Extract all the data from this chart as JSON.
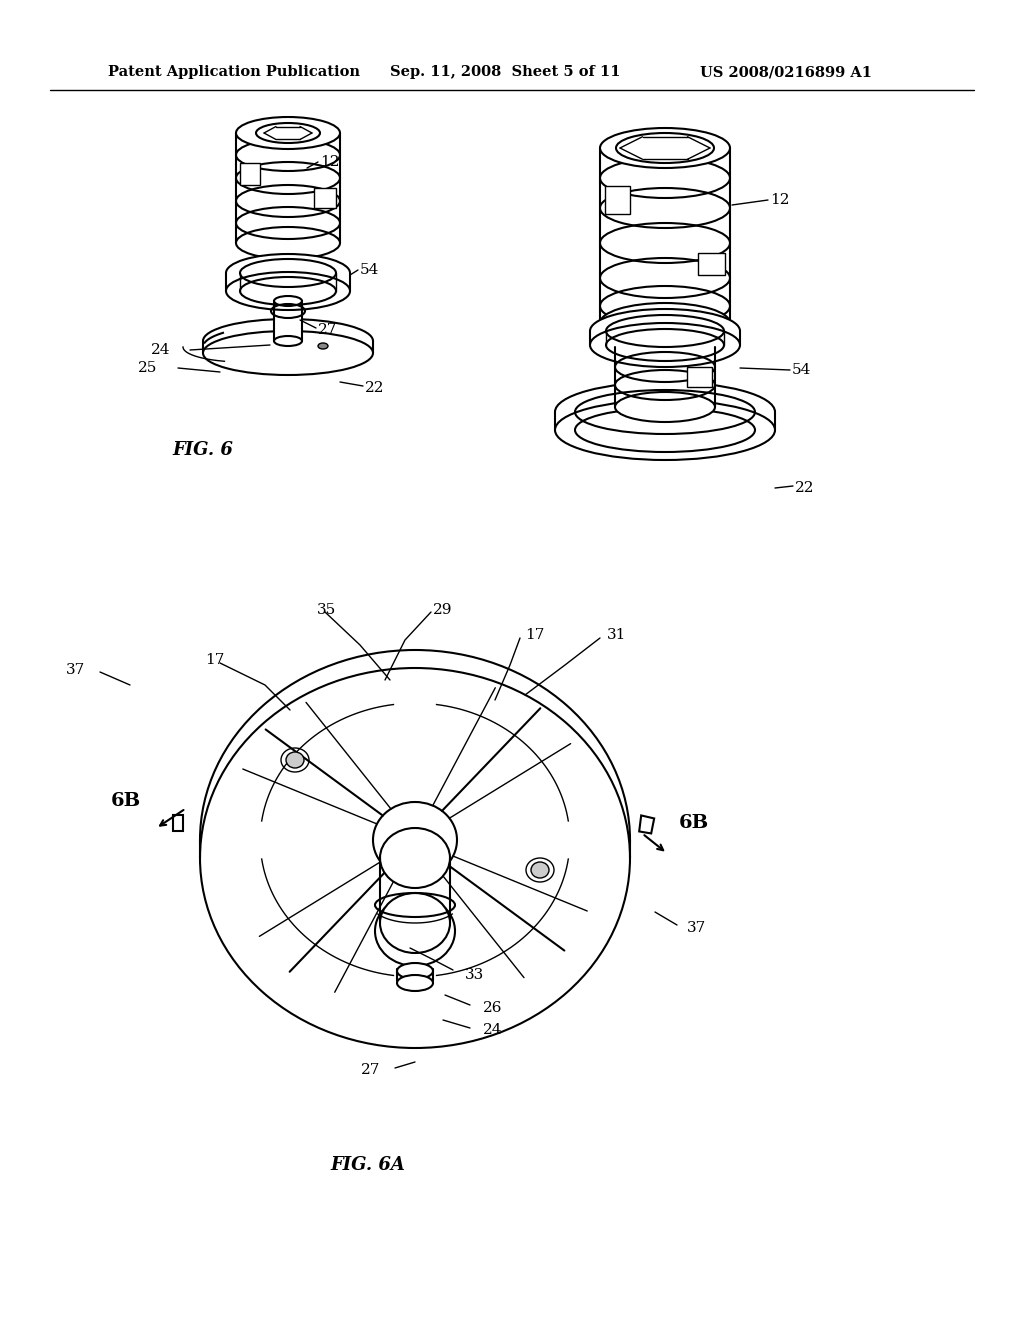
{
  "header_left": "Patent Application Publication",
  "header_middle": "Sep. 11, 2008  Sheet 5 of 11",
  "header_right": "US 2008/0216899 A1",
  "fig6_label": "FIG. 6",
  "fig6a_label": "FIG. 6A",
  "bg_color": "#ffffff",
  "line_color": "#000000",
  "header_fontsize": 10.5,
  "label_fontsize": 13,
  "ref_fontsize": 11,
  "bold_fontsize": 14
}
